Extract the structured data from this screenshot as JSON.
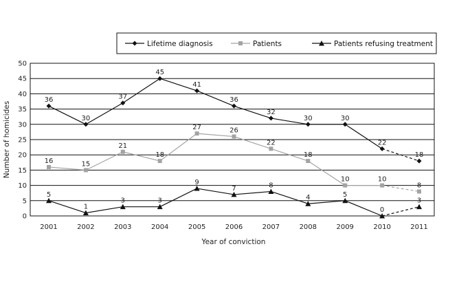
{
  "chart_data": {
    "type": "line",
    "title": "",
    "xlabel": "Year of conviction",
    "ylabel": "Number of homicides",
    "categories": [
      "2001",
      "2002",
      "2003",
      "2004",
      "2005",
      "2006",
      "2007",
      "2008",
      "2009",
      "2010",
      "2011"
    ],
    "ylim": [
      0,
      50
    ],
    "yticks": [
      0,
      5,
      10,
      15,
      20,
      25,
      30,
      35,
      40,
      45,
      50
    ],
    "grid": "horizontal",
    "legend": "top-right",
    "dashed_from_index": 9,
    "series": [
      {
        "name": "Lifetime diagnosis",
        "values": [
          36,
          30,
          37,
          45,
          41,
          36,
          32,
          30,
          30,
          22,
          18
        ],
        "marker": "diamond",
        "color": "#111111"
      },
      {
        "name": "Patients",
        "values": [
          16,
          15,
          21,
          18,
          27,
          26,
          22,
          18,
          10,
          10,
          8
        ],
        "marker": "square",
        "color": "#a3a3a3"
      },
      {
        "name": "Patients refusing treatment",
        "values": [
          5,
          1,
          3,
          3,
          9,
          7,
          8,
          4,
          5,
          0,
          3
        ],
        "marker": "triangle",
        "color": "#111111"
      }
    ]
  }
}
